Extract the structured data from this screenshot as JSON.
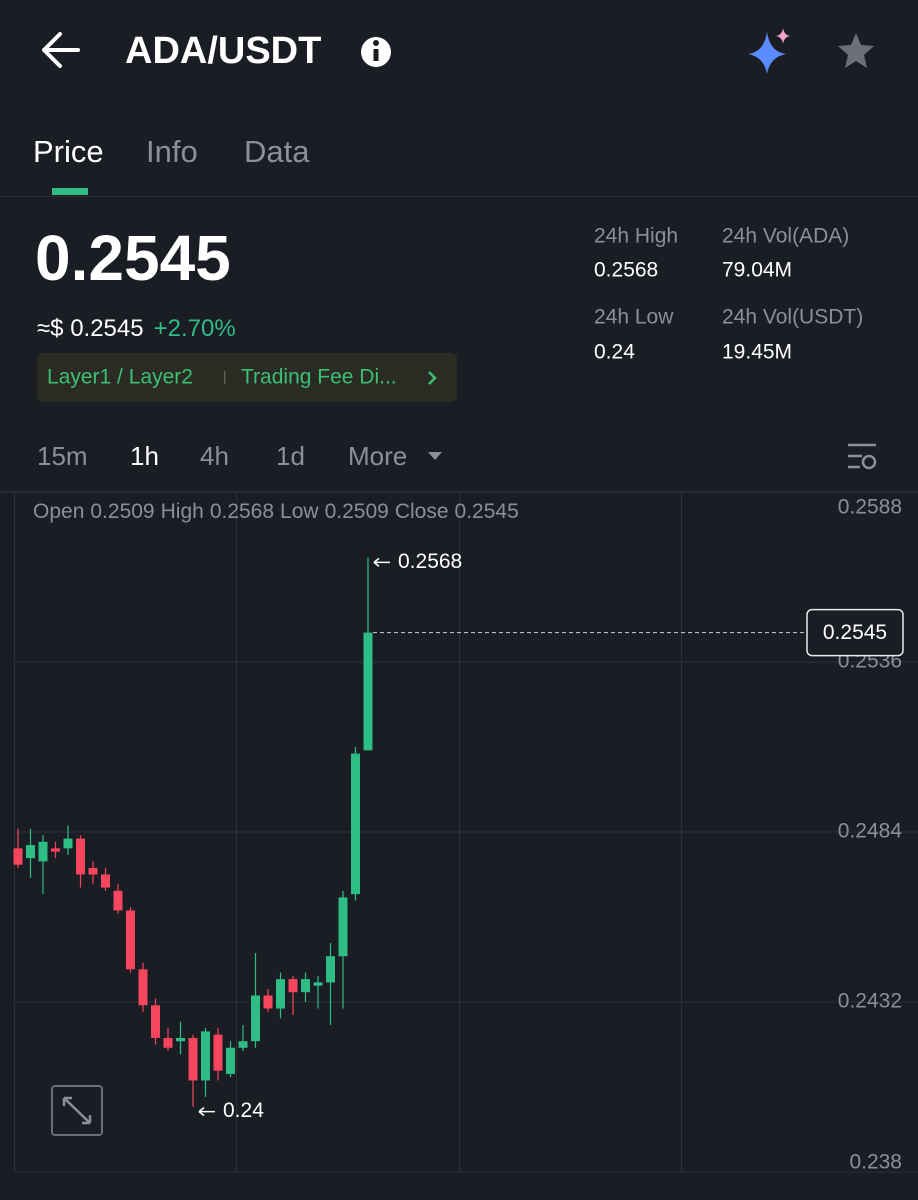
{
  "header": {
    "title": "ADA/USDT"
  },
  "tabs": [
    "Price",
    "Info",
    "Data"
  ],
  "summary": {
    "price": "0.2545",
    "approx": "≈$ 0.2545",
    "change": "+2.70%",
    "tags": [
      "Layer1 / Layer2",
      "Trading Fee Di..."
    ]
  },
  "stats": [
    {
      "label": "24h High",
      "value": "0.2568"
    },
    {
      "label": "24h Vol(ADA)",
      "value": "79.04M"
    },
    {
      "label": "24h Low",
      "value": "0.24"
    },
    {
      "label": "24h Vol(USDT)",
      "value": "19.45M"
    }
  ],
  "intervals": [
    "15m",
    "1h",
    "4h",
    "1d",
    "More"
  ],
  "chart_data": {
    "type": "candlestick",
    "ohlc_labels": [
      "Open",
      "High",
      "Low",
      "Close"
    ],
    "open": [
      0.2479,
      0.2476,
      0.2475,
      0.2479,
      0.2479,
      0.2482,
      0.2473,
      0.2471,
      0.2466,
      0.246,
      0.2442,
      0.2431,
      0.2421,
      0.242,
      0.2421,
      0.2408,
      0.2422,
      0.241,
      0.2418,
      0.242,
      0.2434,
      0.243,
      0.2439,
      0.2435,
      0.2437,
      0.2438,
      0.2446,
      0.2465,
      0.2509
    ],
    "high": [
      0.2485,
      0.2485,
      0.2483,
      0.2481,
      0.2486,
      0.2483,
      0.2475,
      0.2473,
      0.2468,
      0.2461,
      0.2444,
      0.2433,
      0.2424,
      0.2426,
      0.2422,
      0.2424,
      0.2424,
      0.242,
      0.2425,
      0.2447,
      0.2436,
      0.2441,
      0.244,
      0.2441,
      0.244,
      0.245,
      0.2466,
      0.251,
      0.2568
    ],
    "low": [
      0.2473,
      0.247,
      0.2465,
      0.2476,
      0.2477,
      0.2467,
      0.2468,
      0.2466,
      0.2459,
      0.2441,
      0.2429,
      0.2419,
      0.2417,
      0.2416,
      0.24,
      0.2403,
      0.2408,
      0.2409,
      0.2417,
      0.2418,
      0.2429,
      0.2427,
      0.2428,
      0.2432,
      0.243,
      0.2425,
      0.243,
      0.2463,
      0.2509
    ],
    "close": [
      0.2474,
      0.248,
      0.2481,
      0.2478,
      0.2482,
      0.2471,
      0.2471,
      0.2467,
      0.246,
      0.2442,
      0.2431,
      0.2421,
      0.2418,
      0.2421,
      0.2408,
      0.2423,
      0.2411,
      0.2418,
      0.242,
      0.2434,
      0.243,
      0.2439,
      0.2435,
      0.2439,
      0.2438,
      0.2446,
      0.2464,
      0.2508,
      0.2545
    ],
    "up_color": "#2ebd85",
    "down_color": "#f6465d",
    "ylim": [
      0.238,
      0.2588
    ],
    "yticks": [
      0.2588,
      0.2536,
      0.2484,
      0.2432,
      0.238
    ],
    "grid": true
  }
}
